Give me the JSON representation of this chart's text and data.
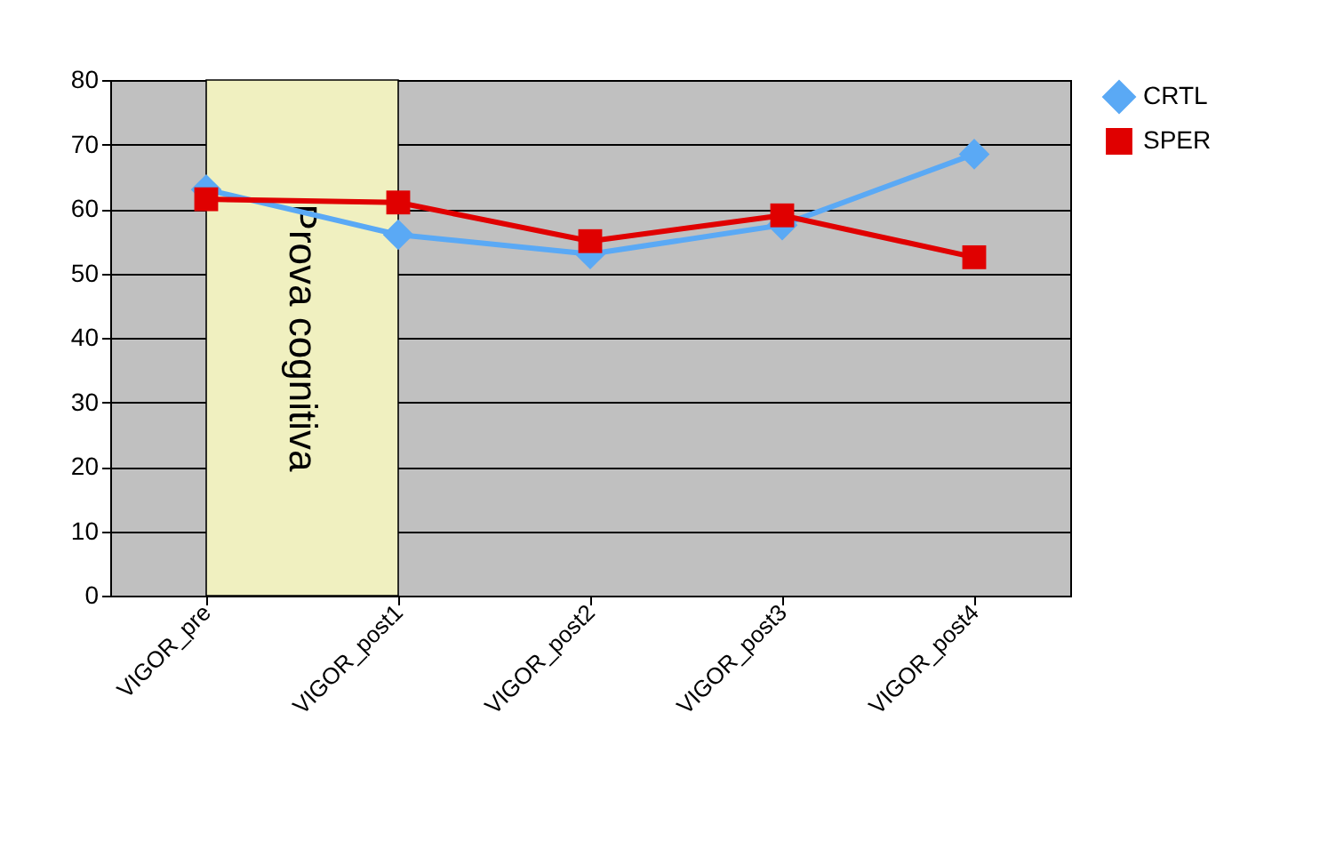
{
  "chart_data": {
    "type": "line",
    "categories": [
      "VIGOR_pre",
      "VIGOR_post1",
      "VIGOR_post2",
      "VIGOR_post3",
      "VIGOR_post4"
    ],
    "series": [
      {
        "name": "CRTL",
        "color": "#5aa9f5",
        "marker": "diamond",
        "values": [
          63,
          56,
          53,
          57.5,
          68.5
        ]
      },
      {
        "name": "SPER",
        "color": "#e00000",
        "marker": "square",
        "values": [
          61.5,
          61,
          55,
          59,
          52.5
        ]
      }
    ],
    "ylim": [
      0,
      80
    ],
    "yticks": [
      0,
      10,
      20,
      30,
      40,
      50,
      60,
      70,
      80
    ],
    "grid": "y",
    "legend": "right",
    "bands": [
      {
        "axis": "x",
        "from": "VIGOR_pre",
        "to": "VIGOR_post1",
        "label": "Prova cognitiva",
        "color": "#f0f0c0"
      }
    ]
  }
}
